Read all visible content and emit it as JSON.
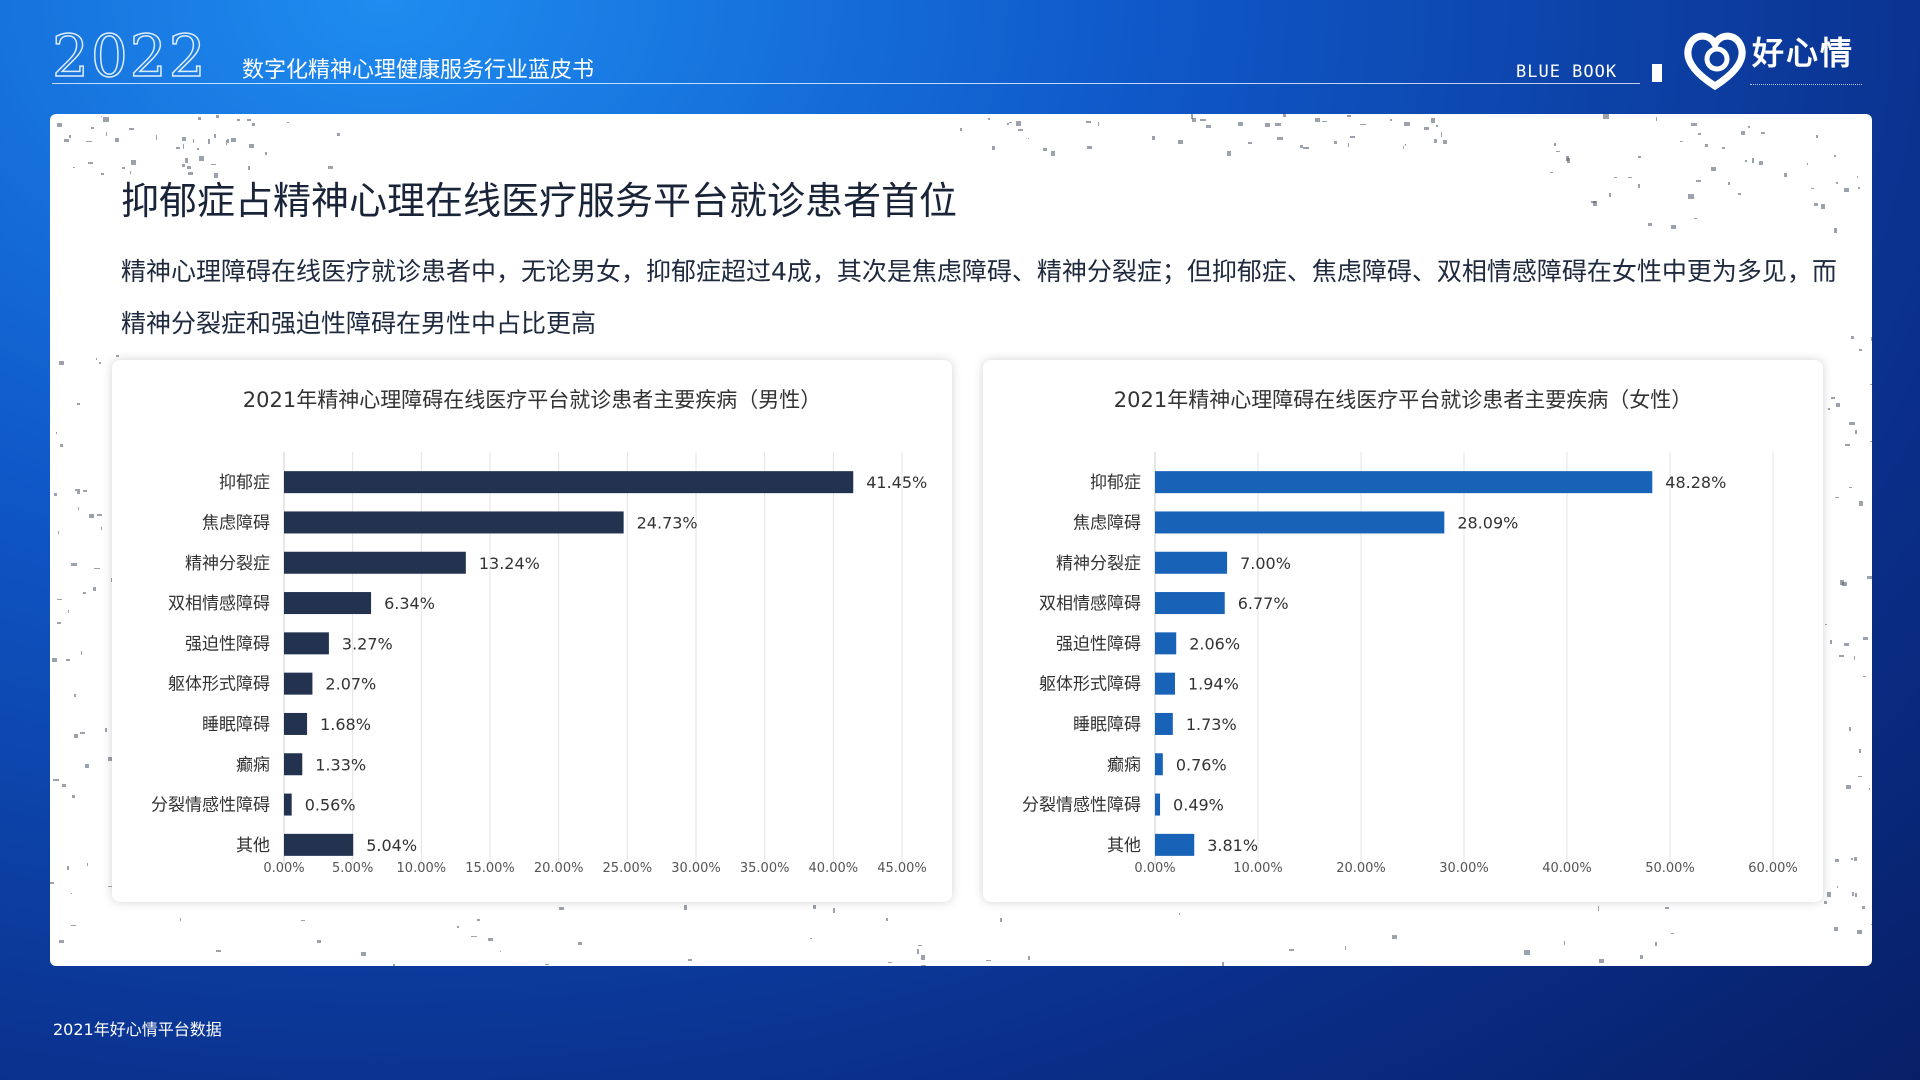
{
  "header": {
    "year": "2022",
    "title": "数字化精神心理健康服务行业蓝皮书",
    "blue_book": "BLUE BOOK",
    "logo_text": "好心情"
  },
  "main": {
    "title": "抑郁症占精神心理在线医疗服务平台就诊患者首位",
    "subtitle": "精神心理障碍在线医疗就诊患者中，无论男女，抑郁症超过4成，其次是焦虑障碍、精神分裂症；但抑郁症、焦虑障碍、双相情感障碍在女性中更为多见，而精神分裂症和强迫性障碍在男性中占比更高"
  },
  "footer": {
    "source": "2021年好心情平台数据"
  },
  "chart_data": [
    {
      "type": "bar",
      "orientation": "horizontal",
      "title": "2021年精神心理障碍在线医疗平台就诊患者主要疾病（男性）",
      "categories": [
        "抑郁症",
        "焦虑障碍",
        "精神分裂症",
        "双相情感障碍",
        "强迫性障碍",
        "躯体形式障碍",
        "睡眠障碍",
        "癫痫",
        "分裂情感性障碍",
        "其他"
      ],
      "values": [
        41.45,
        24.73,
        13.24,
        6.34,
        3.27,
        2.07,
        1.68,
        1.33,
        0.56,
        5.04
      ],
      "value_labels": [
        "41.45%",
        "24.73%",
        "13.24%",
        "6.34%",
        "3.27%",
        "2.07%",
        "1.68%",
        "1.33%",
        "0.56%",
        "5.04%"
      ],
      "xlim": [
        0,
        45
      ],
      "xticks": [
        0,
        5,
        10,
        15,
        20,
        25,
        30,
        35,
        40,
        45
      ],
      "xtick_labels": [
        "0.00%",
        "5.00%",
        "10.00%",
        "15.00%",
        "20.00%",
        "25.00%",
        "30.00%",
        "35.00%",
        "40.00%",
        "45.00%"
      ],
      "color": "#22324f",
      "grid": true
    },
    {
      "type": "bar",
      "orientation": "horizontal",
      "title": "2021年精神心理障碍在线医疗平台就诊患者主要疾病（女性）",
      "categories": [
        "抑郁症",
        "焦虑障碍",
        "精神分裂症",
        "双相情感障碍",
        "强迫性障碍",
        "躯体形式障碍",
        "睡眠障碍",
        "癫痫",
        "分裂情感性障碍",
        "其他"
      ],
      "values": [
        48.28,
        28.09,
        7.0,
        6.77,
        2.06,
        1.94,
        1.73,
        0.76,
        0.49,
        3.81
      ],
      "value_labels": [
        "48.28%",
        "28.09%",
        "7.00%",
        "6.77%",
        "2.06%",
        "1.94%",
        "1.73%",
        "0.76%",
        "0.49%",
        "3.81%"
      ],
      "xlim": [
        0,
        60
      ],
      "xticks": [
        0,
        10,
        20,
        30,
        40,
        50,
        60
      ],
      "xtick_labels": [
        "0.00%",
        "10.00%",
        "20.00%",
        "30.00%",
        "40.00%",
        "50.00%",
        "60.00%"
      ],
      "color": "#1862b8",
      "grid": true
    }
  ]
}
